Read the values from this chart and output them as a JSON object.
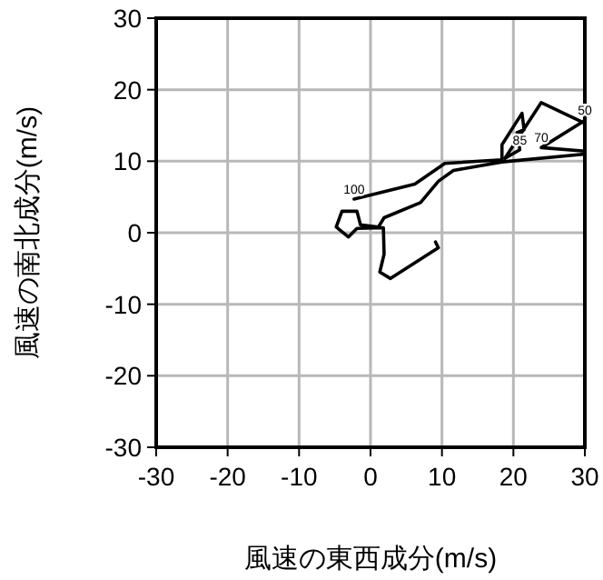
{
  "chart_data": {
    "type": "line",
    "xlabel": "風速の東西成分(m/s)",
    "ylabel": "風速の南北成分(m/s)",
    "xlim": [
      -30,
      30
    ],
    "ylim": [
      -30,
      30
    ],
    "xticks": [
      -30,
      -20,
      -10,
      0,
      10,
      20,
      30
    ],
    "yticks": [
      -30,
      -20,
      -10,
      0,
      10,
      20,
      30
    ],
    "grid": true,
    "marker": "none",
    "line_style": "solid",
    "series": [
      {
        "color": "#000000",
        "x": [
          -2.3,
          6.2,
          10.4,
          18.4,
          18.4,
          21.2,
          21.5,
          20.5,
          20.9,
          18.8,
          23.9,
          30.0,
          30.0,
          23.9,
          30.0,
          30.0,
          18.4,
          11.6,
          9.5,
          7.0,
          1.9,
          1.1,
          -1.4,
          -1.9,
          -4.0,
          -4.8,
          -3.1,
          -1.9,
          1.8,
          1.9,
          1.3,
          2.8,
          9.5,
          9.1
        ],
        "values": [
          4.7,
          6.8,
          9.7,
          10.2,
          12.3,
          16.7,
          14.4,
          14.0,
          11.6,
          10.4,
          18.2,
          15.3,
          11.4,
          11.9,
          15.7,
          11.0,
          9.9,
          8.7,
          7.2,
          4.2,
          2.1,
          0.8,
          1.1,
          3.0,
          3.0,
          0.8,
          -0.6,
          0.6,
          0.7,
          -3.0,
          -5.5,
          -6.4,
          -2.1,
          -1.3
        ]
      }
    ],
    "annotations": [
      {
        "text": "100",
        "x": -2.3,
        "y": 4.7
      },
      {
        "text": "50",
        "x": 30.0,
        "y": 15.7
      },
      {
        "text": "70",
        "x": 23.9,
        "y": 11.9
      },
      {
        "text": "85",
        "x": 20.9,
        "y": 11.6
      }
    ]
  }
}
